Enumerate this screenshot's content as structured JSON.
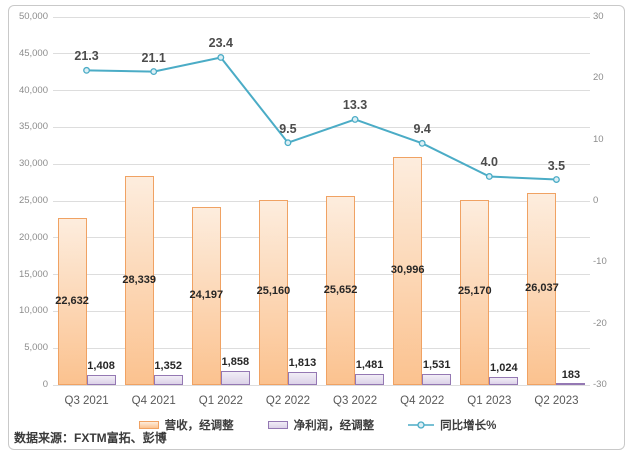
{
  "chart_data": {
    "type": "bar",
    "subtype": "combo-bar-line",
    "categories": [
      "Q3 2021",
      "Q4 2021",
      "Q1 2022",
      "Q2 2022",
      "Q3 2022",
      "Q4 2022",
      "Q1 2023",
      "Q2 2023"
    ],
    "series": [
      {
        "name": "营收，经调整",
        "kind": "bar",
        "axis": "left",
        "values": [
          22632,
          28339,
          24197,
          25160,
          25652,
          30996,
          25170,
          26037
        ],
        "labels": [
          "22,632",
          "28,339",
          "24,197",
          "25,160",
          "25,652",
          "30,996",
          "25,170",
          "26,037"
        ]
      },
      {
        "name": "净利润，经调整",
        "kind": "bar",
        "axis": "left",
        "values": [
          1408,
          1352,
          1858,
          1813,
          1481,
          1531,
          1024,
          183
        ],
        "labels": [
          "1,408",
          "1,352",
          "1,858",
          "1,813",
          "1,481",
          "1,531",
          "1,024",
          "183"
        ]
      },
      {
        "name": "同比增长%",
        "kind": "line",
        "axis": "right",
        "values": [
          21.3,
          21.1,
          23.4,
          9.5,
          13.3,
          9.4,
          4.0,
          3.5
        ],
        "labels": [
          "21.3",
          "21.1",
          "23.4",
          "9.5",
          "13.3",
          "9.4",
          "4.0",
          "3.5"
        ]
      }
    ],
    "left_axis": {
      "min": 0,
      "max": 50000,
      "step": 5000,
      "tick_labels": [
        "0",
        "5,000",
        "10,000",
        "15,000",
        "20,000",
        "25,000",
        "30,000",
        "35,000",
        "40,000",
        "45,000",
        "50,000"
      ]
    },
    "right_axis": {
      "min": -30,
      "max": 30,
      "step": 10,
      "tick_labels": [
        "-30",
        "-20",
        "-10",
        "0",
        "10",
        "20",
        "30"
      ]
    },
    "grid": true,
    "legend_position": "bottom",
    "source_note": "数据来源：FXTM富拓、彭博",
    "colors": {
      "revenue_fill_top": "#FDEDDE",
      "revenue_fill_bottom": "#FBC28F",
      "revenue_border": "#F0A263",
      "profit_fill_top": "#F1EDF6",
      "profit_fill_bottom": "#DCD2E8",
      "profit_border": "#9478B3",
      "line": "#4BACC6",
      "marker_fill": "#DCEFF5",
      "data_label": "#262626",
      "axis_label": "#8C8C8C",
      "category_label": "#595959",
      "gridline": "#DDDDDD",
      "frame_border": "#C9C9C9"
    }
  }
}
